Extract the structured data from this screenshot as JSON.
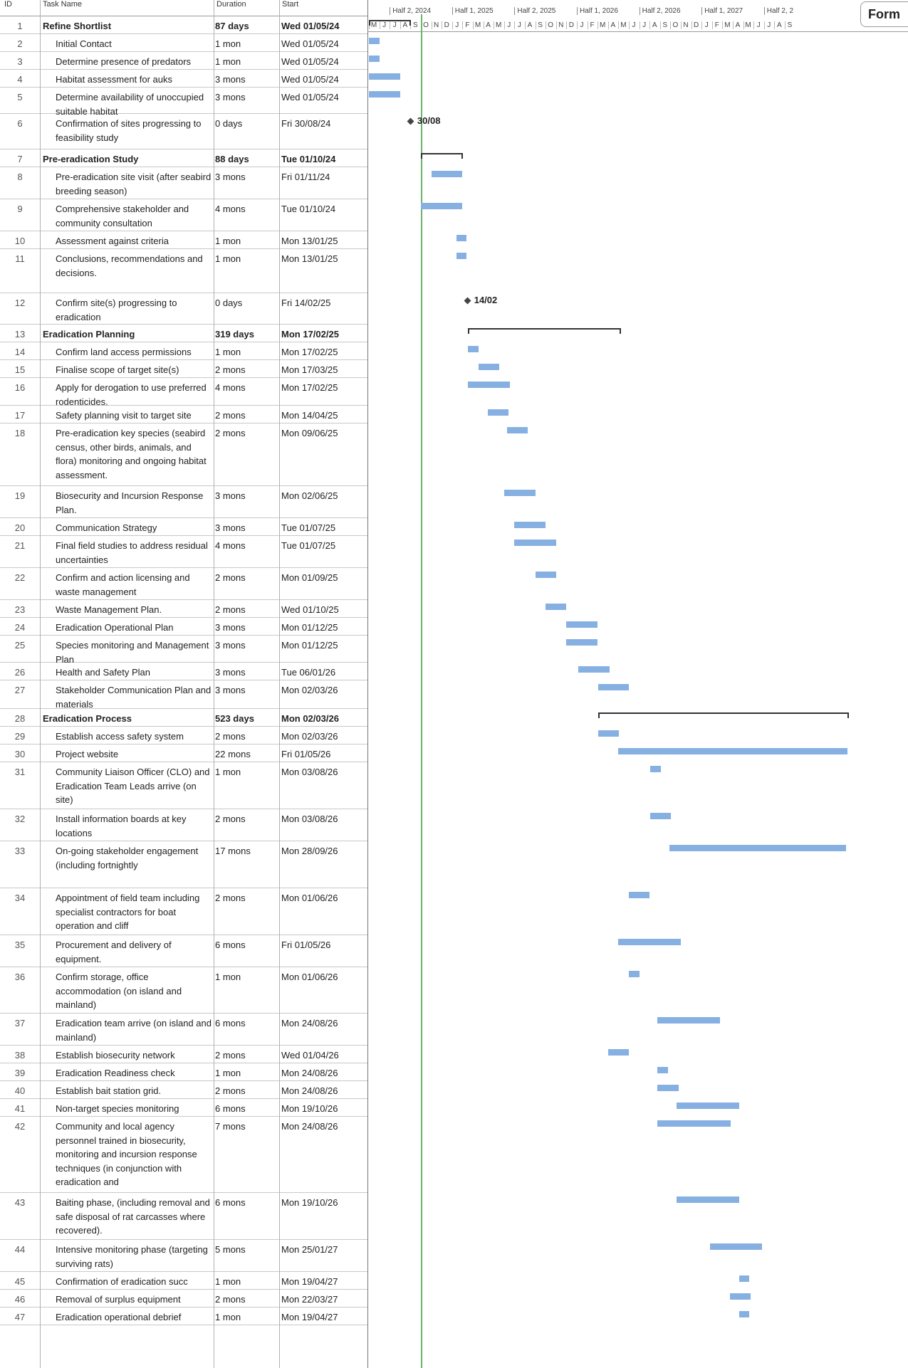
{
  "headers": {
    "id": "ID",
    "name": "Task Name",
    "duration": "Duration",
    "start": "Start"
  },
  "timeline": {
    "halves": [
      "Half 2, 2024",
      "Half 1, 2025",
      "Half 2, 2025",
      "Half 1, 2026",
      "Half 2, 2026",
      "Half 1, 2027",
      "Half 2, 2"
    ],
    "months": [
      "M",
      "J",
      "J",
      "A",
      "S",
      "O",
      "N",
      "D",
      "J",
      "F",
      "M",
      "A",
      "M",
      "J",
      "J",
      "A",
      "S",
      "O",
      "N",
      "D",
      "J",
      "F",
      "M",
      "A",
      "M",
      "J",
      "J",
      "A",
      "S",
      "O",
      "N",
      "D",
      "J",
      "F",
      "M",
      "A",
      "M",
      "J",
      "J",
      "A",
      "S"
    ]
  },
  "side_tab": "Form",
  "tasks": [
    {
      "id": "1",
      "name": "Refine Shortlist",
      "duration": "87 days",
      "start": "Wed 01/05/24",
      "summary": true,
      "h": 25
    },
    {
      "id": "2",
      "name": "Initial Contact",
      "duration": "1 mon",
      "start": "Wed 01/05/24",
      "h": 25
    },
    {
      "id": "3",
      "name": "Determine presence of predators",
      "duration": "1 mon",
      "start": "Wed 01/05/24",
      "h": 25
    },
    {
      "id": "4",
      "name": "Habitat assessment for auks",
      "duration": "3 mons",
      "start": "Wed 01/05/24",
      "h": 25
    },
    {
      "id": "5",
      "name": "Determine availability of unoccupied suitable habitat",
      "duration": "3 mons",
      "start": "Wed 01/05/24",
      "h": 37
    },
    {
      "id": "6",
      "name": "Confirmation of sites progressing to feasibility study",
      "duration": "0 days",
      "start": "Fri 30/08/24",
      "h": 50,
      "milestone": "30/08"
    },
    {
      "id": "7",
      "name": "Pre-eradication Study",
      "duration": "88 days",
      "start": "Tue 01/10/24",
      "summary": true,
      "h": 25
    },
    {
      "id": "8",
      "name": "Pre-eradication site visit (after seabird breeding season)",
      "duration": "3 mons",
      "start": "Fri 01/11/24",
      "h": 45
    },
    {
      "id": "9",
      "name": "Comprehensive stakeholder and community consultation",
      "duration": "4 mons",
      "start": "Tue 01/10/24",
      "h": 45
    },
    {
      "id": "10",
      "name": "Assessment against criteria",
      "duration": "1 mon",
      "start": "Mon 13/01/25",
      "h": 25
    },
    {
      "id": "11",
      "name": "Conclusions, recommendations and decisions.",
      "duration": "1 mon",
      "start": "Mon 13/01/25",
      "h": 62
    },
    {
      "id": "12",
      "name": "Confirm site(s) progressing to eradication",
      "duration": "0 days",
      "start": "Fri 14/02/25",
      "h": 44,
      "milestone": "14/02"
    },
    {
      "id": "13",
      "name": "Eradication Planning",
      "duration": "319 days",
      "start": "Mon 17/02/25",
      "summary": true,
      "h": 25
    },
    {
      "id": "14",
      "name": "Confirm land access permissions",
      "duration": "1 mon",
      "start": "Mon 17/02/25",
      "h": 25
    },
    {
      "id": "15",
      "name": "Finalise scope of target site(s)",
      "duration": "2 mons",
      "start": "Mon 17/03/25",
      "h": 25
    },
    {
      "id": "16",
      "name": "Apply for derogation to use preferred rodenticides.",
      "duration": "4 mons",
      "start": "Mon 17/02/25",
      "h": 39
    },
    {
      "id": "17",
      "name": "Safety planning visit to target site",
      "duration": "2 mons",
      "start": "Mon 14/04/25",
      "h": 25
    },
    {
      "id": "18",
      "name": "Pre-eradication key species (seabird census, other birds, animals, and flora) monitoring and ongoing habitat assessment.",
      "duration": "2 mons",
      "start": "Mon 09/06/25",
      "h": 88
    },
    {
      "id": "19",
      "name": "Biosecurity and Incursion Response Plan.",
      "duration": "3 mons",
      "start": "Mon 02/06/25",
      "h": 45
    },
    {
      "id": "20",
      "name": "Communication Strategy",
      "duration": "3 mons",
      "start": "Tue 01/07/25",
      "h": 25
    },
    {
      "id": "21",
      "name": "Final field studies to address residual uncertainties",
      "duration": "4 mons",
      "start": "Tue 01/07/25",
      "h": 45
    },
    {
      "id": "22",
      "name": "Confirm and action licensing and waste management",
      "duration": "2 mons",
      "start": "Mon 01/09/25",
      "h": 45
    },
    {
      "id": "23",
      "name": "Waste Management Plan.",
      "duration": "2 mons",
      "start": "Wed 01/10/25",
      "h": 25
    },
    {
      "id": "24",
      "name": "Eradication Operational Plan",
      "duration": "3 mons",
      "start": "Mon 01/12/25",
      "h": 25
    },
    {
      "id": "25",
      "name": "Species monitoring and Management Plan",
      "duration": "3 mons",
      "start": "Mon 01/12/25",
      "h": 38
    },
    {
      "id": "26",
      "name": "Health and Safety Plan",
      "duration": "3 mons",
      "start": "Tue 06/01/26",
      "h": 25
    },
    {
      "id": "27",
      "name": "Stakeholder Communication Plan and materials",
      "duration": "3 mons",
      "start": "Mon 02/03/26",
      "h": 40
    },
    {
      "id": "28",
      "name": "Eradication Process",
      "duration": "523 days",
      "start": "Mon 02/03/26",
      "summary": true,
      "h": 25
    },
    {
      "id": "29",
      "name": "Establish access safety system",
      "duration": "2 mons",
      "start": "Mon 02/03/26",
      "h": 25
    },
    {
      "id": "30",
      "name": "Project website",
      "duration": "22 mons",
      "start": "Fri 01/05/26",
      "h": 25
    },
    {
      "id": "31",
      "name": "Community Liaison Officer (CLO) and Eradication Team Leads arrive (on site)",
      "duration": "1 mon",
      "start": "Mon 03/08/26",
      "h": 66
    },
    {
      "id": "32",
      "name": "Install information boards at key locations",
      "duration": "2 mons",
      "start": "Mon 03/08/26",
      "h": 45
    },
    {
      "id": "33",
      "name": "On-going stakeholder engagement (including fortnightly",
      "duration": "17 mons",
      "start": "Mon 28/09/26",
      "h": 66
    },
    {
      "id": "34",
      "name": "Appointment of field team including specialist contractors for boat operation and cliff",
      "duration": "2 mons",
      "start": "Mon 01/06/26",
      "h": 66
    },
    {
      "id": "35",
      "name": "Procurement and delivery of equipment.",
      "duration": "6 mons",
      "start": "Fri 01/05/26",
      "h": 45
    },
    {
      "id": "36",
      "name": "Confirm storage, office accommodation (on island and mainland)",
      "duration": "1 mon",
      "start": "Mon 01/06/26",
      "h": 65
    },
    {
      "id": "37",
      "name": "Eradication team arrive (on island and mainland)",
      "duration": "6 mons",
      "start": "Mon 24/08/26",
      "h": 45
    },
    {
      "id": "38",
      "name": "Establish biosecurity network",
      "duration": "2 mons",
      "start": "Wed 01/04/26",
      "h": 25
    },
    {
      "id": "39",
      "name": "Eradication Readiness check",
      "duration": "1 mon",
      "start": "Mon 24/08/26",
      "h": 25
    },
    {
      "id": "40",
      "name": "Establish bait station grid.",
      "duration": "2 mons",
      "start": "Mon 24/08/26",
      "h": 25
    },
    {
      "id": "41",
      "name": "Non-target species monitoring",
      "duration": "6 mons",
      "start": "Mon 19/10/26",
      "h": 25
    },
    {
      "id": "42",
      "name": "Community and local agency personnel trained in biosecurity, monitoring and incursion response techniques (in conjunction with eradication and",
      "duration": "7 mons",
      "start": "Mon 24/08/26",
      "h": 107
    },
    {
      "id": "43",
      "name": "Baiting phase, (including removal and safe disposal of rat carcasses where recovered).",
      "duration": "6 mons",
      "start": "Mon 19/10/26",
      "h": 66
    },
    {
      "id": "44",
      "name": "Intensive monitoring phase (targeting surviving rats)",
      "duration": "5 mons",
      "start": "Mon 25/01/27",
      "h": 45
    },
    {
      "id": "45",
      "name": "Confirmation of eradication succ",
      "duration": "1 mon",
      "start": "Mon 19/04/27",
      "h": 25
    },
    {
      "id": "46",
      "name": "Removal of surplus equipment",
      "duration": "2 mons",
      "start": "Mon 22/03/27",
      "h": 25
    },
    {
      "id": "47",
      "name": "Eradication operational debrief",
      "duration": "1 mon",
      "start": "Mon 19/04/27",
      "h": 25
    }
  ]
}
